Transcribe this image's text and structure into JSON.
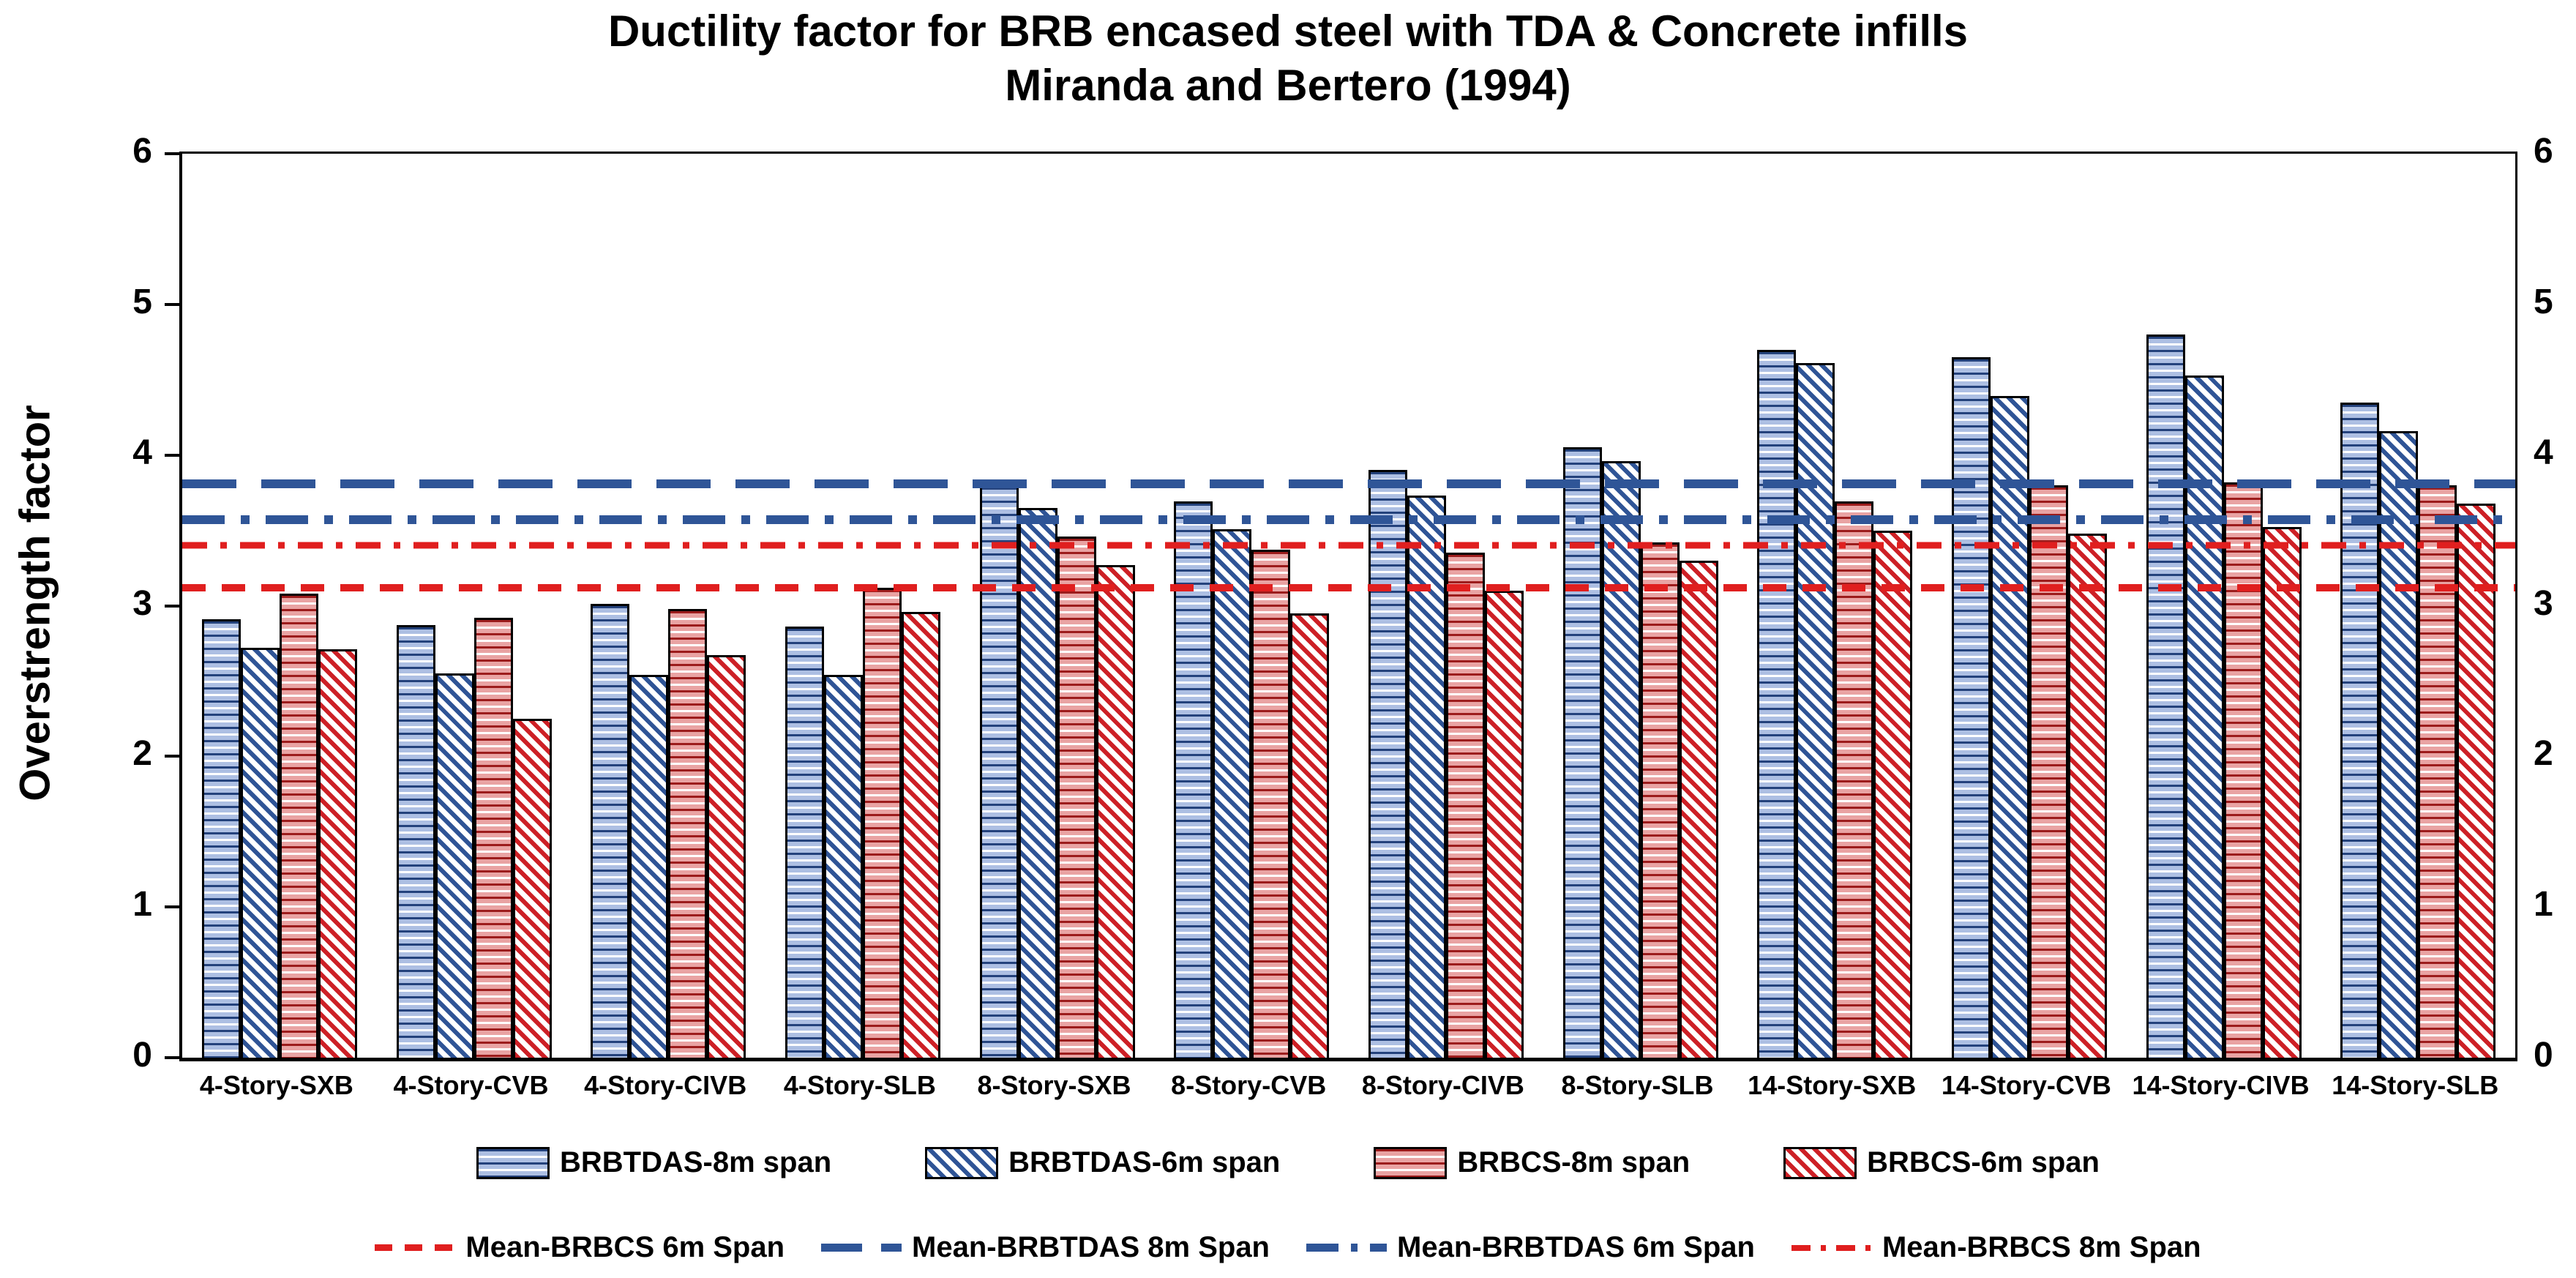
{
  "title": {
    "line1": "Ductility factor for BRB encased steel with TDA & Concrete infills",
    "line2": "Miranda and Bertero (1994)"
  },
  "y_axis": {
    "title": "Overstrength factor",
    "min": 0,
    "max": 6,
    "ticks": [
      "0",
      "1",
      "2",
      "3",
      "4",
      "5",
      "6"
    ]
  },
  "right_axis": {
    "ticks": [
      "0",
      "1",
      "2",
      "3",
      "4",
      "5",
      "6"
    ]
  },
  "chart_data": {
    "type": "bar",
    "title": "Ductility factor for BRB encased steel with TDA & Concrete infills Miranda and Bertero (1994)",
    "ylabel": "Overstrength factor",
    "ylim": [
      0,
      6
    ],
    "grid": false,
    "legend_position": "bottom",
    "categories": [
      "4-Story-SXB",
      "4-Story-CVB",
      "4-Story-CIVB",
      "4-Story-SLB",
      "8-Story-SXB",
      "8-Story-CVB",
      "8-Story-CIVB",
      "8-Story-SLB",
      "14-Story-SXB",
      "14-Story-CVB",
      "14-Story-CIVB",
      "14-Story-SLB"
    ],
    "series": [
      {
        "name": "BRBTDAS-8m span",
        "pattern": "blue-horizontal",
        "values": [
          2.91,
          2.87,
          3.01,
          2.86,
          3.8,
          3.69,
          3.9,
          4.05,
          4.7,
          4.65,
          4.8,
          4.35
        ]
      },
      {
        "name": "BRBTDAS-6m span",
        "pattern": "blue-diagonal",
        "values": [
          2.72,
          2.55,
          2.54,
          2.54,
          3.65,
          3.51,
          3.73,
          3.96,
          4.61,
          4.39,
          4.53,
          4.16
        ]
      },
      {
        "name": "BRBCS-8m span",
        "pattern": "red-horizontal",
        "values": [
          3.08,
          2.92,
          2.98,
          3.12,
          3.46,
          3.37,
          3.35,
          3.42,
          3.69,
          3.8,
          3.82,
          3.8
        ]
      },
      {
        "name": "BRBCS-6m span",
        "pattern": "red-diagonal",
        "values": [
          2.71,
          2.25,
          2.67,
          2.96,
          3.27,
          2.95,
          3.1,
          3.3,
          3.5,
          3.48,
          3.52,
          3.68
        ]
      }
    ],
    "mean_lines": [
      {
        "name": "Mean-BRBCS 6m Span",
        "value": 3.12,
        "color": "#e01f1f",
        "style": "dash"
      },
      {
        "name": "Mean-BRBTDAS 8m Span",
        "value": 3.81,
        "color": "#2f5597",
        "style": "long-dash"
      },
      {
        "name": "Mean-BRBTDAS 6m Span",
        "value": 3.57,
        "color": "#2f5597",
        "style": "dash-dot"
      },
      {
        "name": "Mean-BRBCS 8m Span",
        "value": 3.4,
        "color": "#e01f1f",
        "style": "dash-dot-small"
      }
    ]
  },
  "colors": {
    "blue_dark": "#2f5497",
    "blue_light": "#adbfe3",
    "red_dark": "#c00000",
    "red_light": "#e9a3a3",
    "mean_blue": "#2f5597",
    "mean_red": "#e01f1f",
    "axis": "#000000",
    "background": "#ffffff"
  }
}
